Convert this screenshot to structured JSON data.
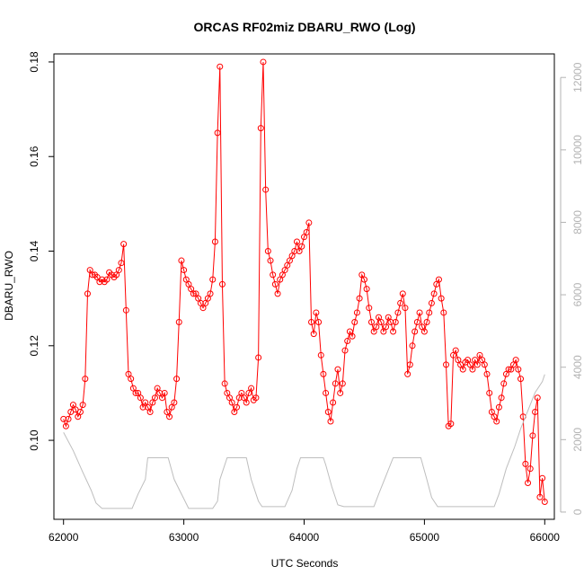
{
  "chart_data": {
    "type": "line",
    "title": "ORCAS RF02miz DBARU_RWO (Log)",
    "xlabel": "UTC Seconds",
    "ylabel": "DBARU_RWO",
    "xlim": [
      61920,
      66080
    ],
    "ylim": [
      0.0833,
      0.1817
    ],
    "y2lim": [
      -200,
      12650
    ],
    "x_ticks": [
      "62000",
      "63000",
      "64000",
      "65000",
      "66000"
    ],
    "y_ticks": [
      "0.10",
      "0.12",
      "0.14",
      "0.16",
      "0.18"
    ],
    "y2_ticks": [
      "0",
      "2000",
      "4000",
      "6000",
      "8000",
      "10000",
      "12000"
    ],
    "colors": {
      "main": "#ff0000",
      "secondary": "#bebebe",
      "axis": "#000000",
      "axis2": "#b3b3b3"
    },
    "series": [
      {
        "axis": "left",
        "color": "#ff0000",
        "x": [
          62000,
          62020,
          62040,
          62060,
          62080,
          62100,
          62120,
          62140,
          62160,
          62180,
          62200,
          62220,
          62240,
          62260,
          62280,
          62300,
          62320,
          62340,
          62360,
          62380,
          62400,
          62420,
          62440,
          62460,
          62480,
          62500,
          62520,
          62540,
          62560,
          62580,
          62600,
          62620,
          62640,
          62660,
          62680,
          62700,
          62720,
          62740,
          62760,
          62780,
          62800,
          62820,
          62840,
          62860,
          62880,
          62900,
          62920,
          62940,
          62960,
          62980,
          63000,
          63020,
          63040,
          63060,
          63080,
          63100,
          63120,
          63140,
          63160,
          63180,
          63200,
          63220,
          63240,
          63260,
          63280,
          63300,
          63320,
          63340,
          63360,
          63380,
          63400,
          63420,
          63440,
          63460,
          63480,
          63500,
          63520,
          63540,
          63560,
          63580,
          63600,
          63620,
          63640,
          63660,
          63680,
          63700,
          63720,
          63740,
          63760,
          63780,
          63800,
          63820,
          63840,
          63860,
          63880,
          63900,
          63920,
          63940,
          63960,
          63980,
          64000,
          64020,
          64040,
          64060,
          64080,
          64100,
          64120,
          64140,
          64160,
          64180,
          64200,
          64220,
          64240,
          64260,
          64280,
          64300,
          64320,
          64340,
          64360,
          64380,
          64400,
          64420,
          64440,
          64460,
          64480,
          64500,
          64520,
          64540,
          64560,
          64580,
          64600,
          64620,
          64640,
          64660,
          64680,
          64700,
          64720,
          64740,
          64760,
          64780,
          64800,
          64820,
          64840,
          64860,
          64880,
          64900,
          64920,
          64940,
          64960,
          64980,
          65000,
          65020,
          65040,
          65060,
          65080,
          65100,
          65120,
          65140,
          65160,
          65180,
          65200,
          65220,
          65240,
          65260,
          65280,
          65300,
          65320,
          65340,
          65360,
          65380,
          65400,
          65420,
          65440,
          65460,
          65480,
          65500,
          65520,
          65540,
          65560,
          65580,
          65600,
          65620,
          65640,
          65660,
          65680,
          65700,
          65720,
          65740,
          65760,
          65780,
          65800,
          65820,
          65840,
          65860,
          65880,
          65900,
          65920,
          65940,
          65960,
          65980,
          66000
        ],
        "y": [
          0.1045,
          0.103,
          0.1045,
          0.106,
          0.1075,
          0.1065,
          0.105,
          0.106,
          0.1075,
          0.113,
          0.131,
          0.136,
          0.135,
          0.135,
          0.1345,
          0.1335,
          0.134,
          0.1335,
          0.134,
          0.1355,
          0.135,
          0.1345,
          0.135,
          0.136,
          0.1375,
          0.1415,
          0.1275,
          0.114,
          0.113,
          0.111,
          0.11,
          0.11,
          0.109,
          0.107,
          0.108,
          0.107,
          0.106,
          0.108,
          0.109,
          0.111,
          0.11,
          0.109,
          0.11,
          0.106,
          0.105,
          0.107,
          0.108,
          0.113,
          0.125,
          0.138,
          0.136,
          0.134,
          0.133,
          0.132,
          0.131,
          0.131,
          0.13,
          0.129,
          0.128,
          0.129,
          0.13,
          0.131,
          0.134,
          0.142,
          0.165,
          0.179,
          0.133,
          0.112,
          0.11,
          0.109,
          0.108,
          0.106,
          0.107,
          0.109,
          0.11,
          0.109,
          0.108,
          0.11,
          0.111,
          0.1085,
          0.109,
          0.1175,
          0.166,
          0.18,
          0.153,
          0.14,
          0.138,
          0.135,
          0.133,
          0.131,
          0.134,
          0.135,
          0.136,
          0.137,
          0.138,
          0.139,
          0.14,
          0.142,
          0.14,
          0.141,
          0.143,
          0.144,
          0.146,
          0.125,
          0.1225,
          0.127,
          0.125,
          0.118,
          0.114,
          0.11,
          0.106,
          0.104,
          0.108,
          0.112,
          0.115,
          0.11,
          0.112,
          0.119,
          0.121,
          0.123,
          0.122,
          0.125,
          0.127,
          0.13,
          0.135,
          0.134,
          0.132,
          0.128,
          0.125,
          0.123,
          0.124,
          0.126,
          0.125,
          0.123,
          0.124,
          0.126,
          0.125,
          0.123,
          0.125,
          0.127,
          0.129,
          0.131,
          0.128,
          0.114,
          0.116,
          0.12,
          0.123,
          0.125,
          0.127,
          0.124,
          0.123,
          0.125,
          0.127,
          0.129,
          0.131,
          0.133,
          0.134,
          0.13,
          0.127,
          0.116,
          0.103,
          0.1035,
          0.118,
          0.119,
          0.117,
          0.116,
          0.115,
          0.1165,
          0.117,
          0.116,
          0.115,
          0.117,
          0.116,
          0.118,
          0.117,
          0.116,
          0.114,
          0.11,
          0.106,
          0.105,
          0.104,
          0.107,
          0.109,
          0.112,
          0.114,
          0.115,
          0.115,
          0.116,
          0.117,
          0.115,
          0.113,
          0.105,
          0.095,
          0.091,
          0.094,
          0.101,
          0.106,
          0.109,
          0.088,
          0.092,
          0.087
        ]
      },
      {
        "axis": "right",
        "color": "#bebebe",
        "x": [
          62000,
          62080,
          62160,
          62230,
          62270,
          62320,
          62400,
          62460,
          62520,
          62570,
          62620,
          62680,
          62700,
          62760,
          62800,
          62840,
          62870,
          62920,
          62980,
          63040,
          63070,
          63120,
          63180,
          63240,
          63280,
          63300,
          63360,
          63400,
          63440,
          63480,
          63520,
          63560,
          63600,
          63620,
          63650,
          63700,
          63760,
          63800,
          63840,
          63900,
          63940,
          63970,
          64000,
          64040,
          64100,
          64160,
          64180,
          64230,
          64280,
          64330,
          64380,
          64420,
          64460,
          64520,
          64580,
          64620,
          64680,
          64740,
          64790,
          64830,
          64860,
          64920,
          64970,
          65020,
          65060,
          65110,
          65160,
          65220,
          65280,
          65320,
          65380,
          65420,
          65460,
          65520,
          65580,
          65620,
          65680,
          65750,
          65800,
          65860,
          65920,
          65980,
          66000
        ],
        "y": [
          2200,
          1700,
          1100,
          600,
          250,
          100,
          100,
          100,
          100,
          100,
          500,
          900,
          1500,
          1500,
          1500,
          1500,
          1500,
          900,
          500,
          100,
          100,
          100,
          100,
          100,
          300,
          900,
          1500,
          1500,
          1500,
          1500,
          1500,
          900,
          500,
          300,
          150,
          150,
          150,
          150,
          150,
          600,
          1200,
          1500,
          1500,
          1500,
          1500,
          1500,
          1300,
          700,
          200,
          150,
          150,
          150,
          150,
          150,
          150,
          500,
          1000,
          1500,
          1500,
          1500,
          1500,
          1500,
          1500,
          900,
          400,
          150,
          150,
          150,
          150,
          150,
          150,
          150,
          150,
          150,
          150,
          500,
          1200,
          1800,
          2300,
          2800,
          3300,
          3600,
          3800
        ]
      }
    ]
  }
}
